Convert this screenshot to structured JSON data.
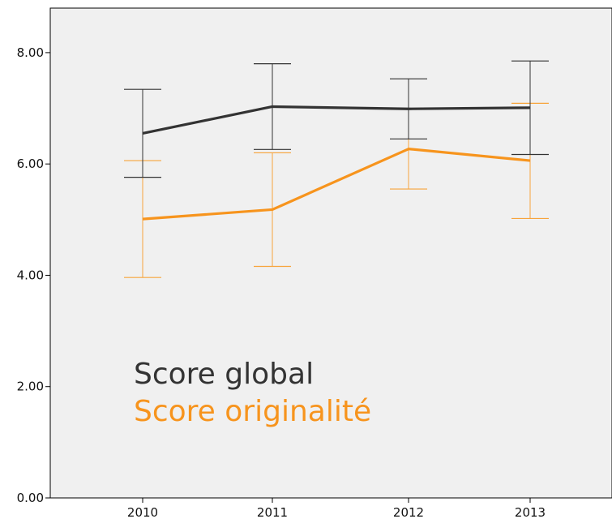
{
  "colors": {
    "plot_background": "#f0f0f0",
    "axis": "#000000",
    "series_global": "#333333",
    "series_originalite": "#f7941d",
    "errorbar_global": "#333333",
    "errorbar_originalite": "#f7a43b"
  },
  "chart_data": {
    "type": "line",
    "categories": [
      "2010",
      "2011",
      "2012",
      "2013"
    ],
    "ylim": [
      0,
      8.8
    ],
    "yticks": [
      "0.00",
      "2.00",
      "4.00",
      "6.00",
      "8.00"
    ],
    "ytick_values": [
      0,
      2,
      4,
      6,
      8
    ],
    "grid": false,
    "legend_position": "lower-left inside plot",
    "series": [
      {
        "name": "Score global",
        "values": [
          6.55,
          7.03,
          6.99,
          7.01
        ],
        "error_low": [
          5.76,
          6.26,
          6.45,
          6.17
        ],
        "error_high": [
          7.34,
          7.8,
          7.53,
          7.85
        ]
      },
      {
        "name": "Score originalité",
        "values": [
          5.01,
          5.18,
          6.27,
          6.06
        ],
        "error_low": [
          3.96,
          4.16,
          5.55,
          5.02
        ],
        "error_high": [
          6.06,
          6.2,
          6.98,
          7.09
        ]
      }
    ]
  }
}
